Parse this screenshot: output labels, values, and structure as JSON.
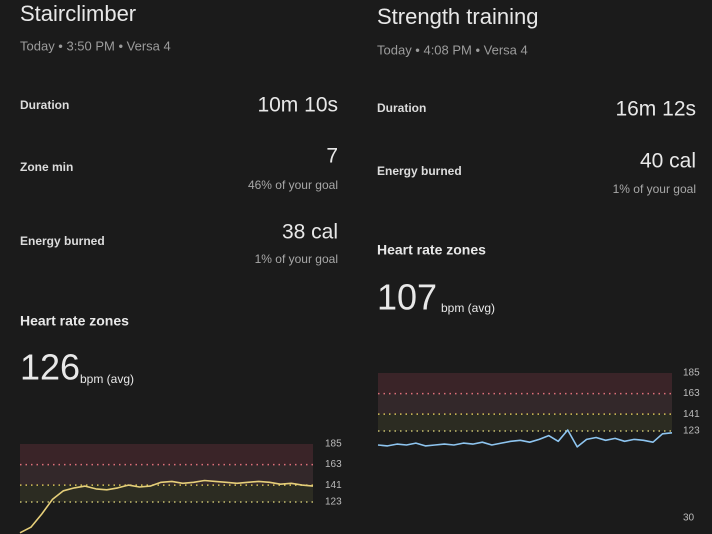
{
  "panels": [
    {
      "title": "Stairclimber",
      "subtitle": "Today • 3:50 PM • Versa 4",
      "stats": [
        {
          "label": "Duration",
          "value": "10m 10s"
        },
        {
          "label": "Zone min",
          "value": "7",
          "note": "46% of your goal"
        },
        {
          "label": "Energy burned",
          "value": "38 cal",
          "note": "1% of your goal"
        }
      ],
      "hr_heading": "Heart rate zones",
      "hr_value": "126",
      "hr_unit": "bpm (avg)",
      "chart": {
        "ylim": [
          30,
          185
        ],
        "yticks": [
          185,
          163,
          141,
          123
        ],
        "color": "#e6cf7a",
        "values": [
          90,
          96,
          110,
          126,
          135,
          138,
          140,
          137,
          136,
          138,
          141,
          139,
          140,
          144,
          145,
          143,
          144,
          146,
          145,
          144,
          143,
          144,
          145,
          144,
          142,
          143,
          141,
          140
        ]
      }
    },
    {
      "title": "Strength training",
      "subtitle": "Today • 4:08 PM • Versa 4",
      "stats": [
        {
          "label": "Duration",
          "value": "16m 12s"
        },
        {
          "label": "Energy burned",
          "value": "40 cal",
          "note": "1% of your goal"
        }
      ],
      "hr_heading": "Heart rate zones",
      "hr_value": "107",
      "hr_unit": "bpm (avg)",
      "chart": {
        "ylim": [
          30,
          185
        ],
        "yticks": [
          185,
          163,
          141,
          123,
          30
        ],
        "color": "#8ec5f0",
        "values": [
          108,
          107,
          109,
          108,
          110,
          107,
          108,
          109,
          108,
          110,
          109,
          111,
          108,
          110,
          112,
          113,
          111,
          114,
          118,
          112,
          124,
          106,
          114,
          116,
          113,
          115,
          112,
          114,
          113,
          111,
          120,
          121
        ]
      }
    }
  ]
}
